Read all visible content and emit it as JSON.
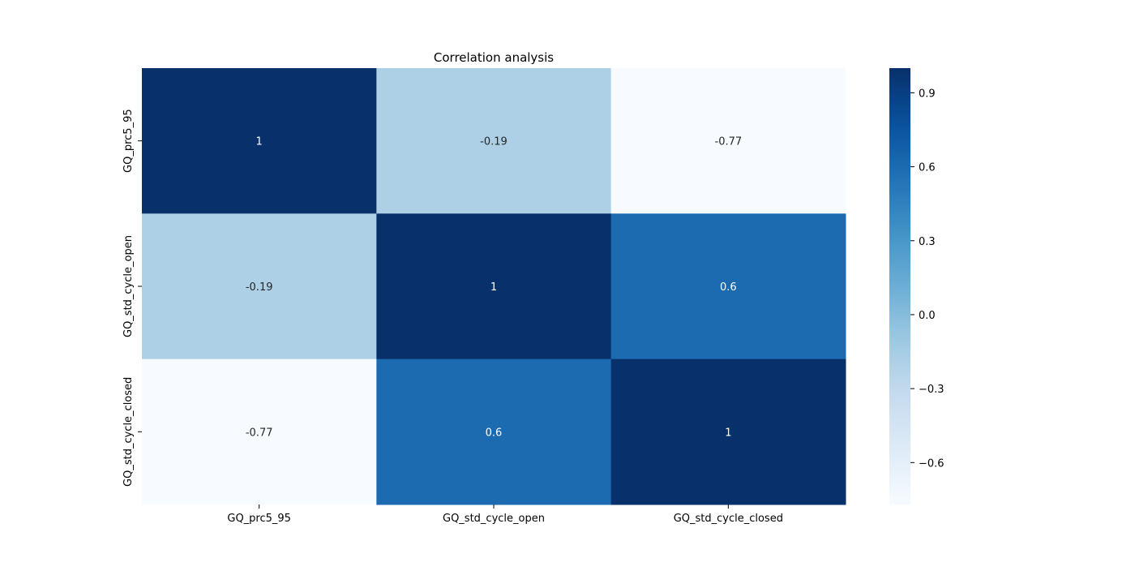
{
  "chart_data": {
    "type": "heatmap",
    "title": "Correlation analysis",
    "xlabel": "",
    "ylabel": "",
    "x_categories": [
      "GQ_prc5_95",
      "GQ_std_cycle_open",
      "GQ_std_cycle_closed"
    ],
    "y_categories": [
      "GQ_prc5_95",
      "GQ_std_cycle_open",
      "GQ_std_cycle_closed"
    ],
    "cell_labels": [
      [
        "1",
        "-0.19",
        "-0.77"
      ],
      [
        "-0.19",
        "1",
        "0.6"
      ],
      [
        "-0.77",
        "0.6",
        "1"
      ]
    ],
    "values": [
      [
        1.0,
        -0.19,
        -0.77
      ],
      [
        -0.19,
        1.0,
        0.6
      ],
      [
        -0.77,
        0.6,
        1.0
      ]
    ],
    "colorbar": {
      "cmap": "Blues",
      "range": [
        -0.77,
        1.0
      ],
      "ticks": [
        -0.6,
        -0.3,
        0.0,
        0.3,
        0.6,
        0.9
      ],
      "tick_labels": [
        "−0.6",
        "−0.3",
        "0.0",
        "0.3",
        "0.6",
        "0.9"
      ]
    },
    "grid": false,
    "legend": "colorbar-right"
  }
}
